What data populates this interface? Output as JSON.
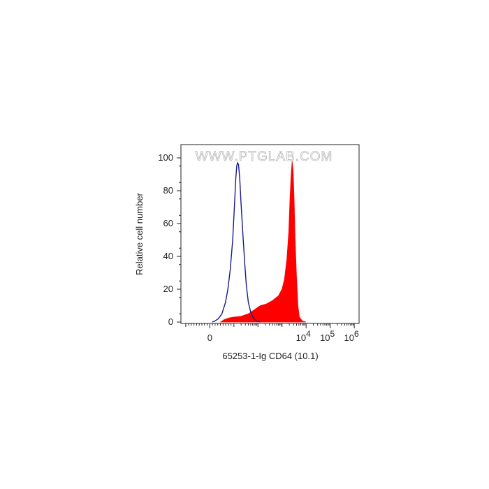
{
  "chart_data": {
    "type": "area",
    "title": "",
    "xlabel": "65253-1-Ig CD64 (10.1)",
    "ylabel": "Relative cell number",
    "watermark": "WWW.PTGLAB.COM",
    "x_scale": "biexponential (log10 with linear region around 0)",
    "xlim": [
      -1.2,
      6.2
    ],
    "ylim": [
      0,
      100
    ],
    "grid": false,
    "legend": "none",
    "x_ticks": [
      {
        "pos": 0,
        "base": "0",
        "exp": ""
      },
      {
        "pos": 4,
        "base": "10",
        "exp": "4"
      },
      {
        "pos": 5,
        "base": "10",
        "exp": "5"
      },
      {
        "pos": 6,
        "base": "10",
        "exp": "6"
      }
    ],
    "y_ticks": [
      {
        "value": 0,
        "label": "0"
      },
      {
        "value": 20,
        "label": "20"
      },
      {
        "value": 40,
        "label": "40"
      },
      {
        "value": 60,
        "label": "60"
      },
      {
        "value": 80,
        "label": "80"
      },
      {
        "value": 100,
        "label": "100"
      }
    ],
    "series": [
      {
        "style": "outline",
        "color": "#1a1a8c",
        "points": [
          [
            0.1,
            0
          ],
          [
            0.2,
            0.5
          ],
          [
            0.35,
            2
          ],
          [
            0.5,
            5
          ],
          [
            0.65,
            12
          ],
          [
            0.75,
            20
          ],
          [
            0.85,
            32
          ],
          [
            0.95,
            50
          ],
          [
            1.02,
            70
          ],
          [
            1.08,
            88
          ],
          [
            1.12,
            95
          ],
          [
            1.15,
            97
          ],
          [
            1.19,
            96
          ],
          [
            1.24,
            88
          ],
          [
            1.3,
            72
          ],
          [
            1.38,
            52
          ],
          [
            1.45,
            36
          ],
          [
            1.52,
            22
          ],
          [
            1.6,
            12
          ],
          [
            1.7,
            6
          ],
          [
            1.82,
            2
          ],
          [
            1.95,
            0.5
          ],
          [
            2.1,
            0
          ]
        ]
      },
      {
        "style": "filled",
        "color": "#ff0000",
        "points": [
          [
            0.45,
            0
          ],
          [
            0.6,
            1.5
          ],
          [
            0.8,
            2.5
          ],
          [
            1.0,
            3
          ],
          [
            1.3,
            3.5
          ],
          [
            1.6,
            5
          ],
          [
            1.9,
            8
          ],
          [
            2.1,
            10
          ],
          [
            2.35,
            11
          ],
          [
            2.6,
            13
          ],
          [
            2.85,
            16
          ],
          [
            3.0,
            20
          ],
          [
            3.1,
            26
          ],
          [
            3.2,
            38
          ],
          [
            3.28,
            55
          ],
          [
            3.33,
            75
          ],
          [
            3.38,
            90
          ],
          [
            3.42,
            98
          ],
          [
            3.46,
            92
          ],
          [
            3.5,
            75
          ],
          [
            3.54,
            52
          ],
          [
            3.6,
            28
          ],
          [
            3.66,
            10
          ],
          [
            3.72,
            3
          ],
          [
            3.85,
            0.5
          ],
          [
            4.0,
            0
          ]
        ]
      }
    ]
  }
}
